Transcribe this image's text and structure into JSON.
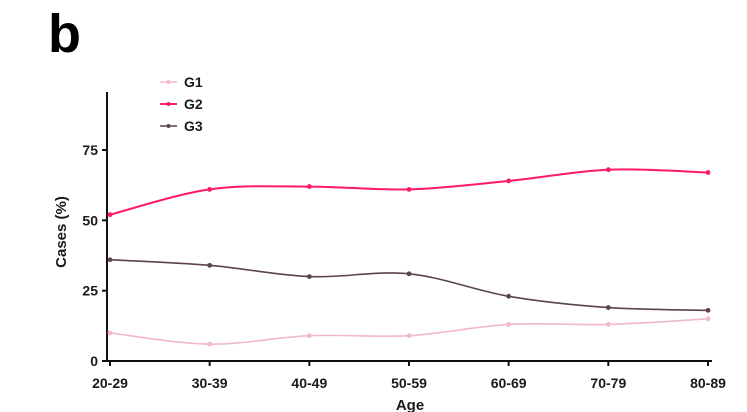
{
  "panel_label": "b",
  "chart_data": {
    "type": "line",
    "xlabel": "Age",
    "ylabel": "Cases (%)",
    "categories": [
      "20-29",
      "30-39",
      "40-49",
      "50-59",
      "60-69",
      "70-79",
      "80-89"
    ],
    "yticks": [
      "0",
      "25",
      "50",
      "75"
    ],
    "ylim": [
      0,
      100
    ],
    "grid": false,
    "legend_position": "top-left",
    "series": [
      {
        "name": "G1",
        "color": "#f2b8c6",
        "values": [
          10,
          6,
          9,
          9,
          13,
          13,
          15
        ]
      },
      {
        "name": "G2",
        "color": "#ff1a66",
        "values": [
          52,
          61,
          62,
          61,
          64,
          68,
          67
        ]
      },
      {
        "name": "G3",
        "color": "#5a4448",
        "values": [
          36,
          34,
          30,
          31,
          23,
          19,
          18
        ]
      }
    ]
  }
}
